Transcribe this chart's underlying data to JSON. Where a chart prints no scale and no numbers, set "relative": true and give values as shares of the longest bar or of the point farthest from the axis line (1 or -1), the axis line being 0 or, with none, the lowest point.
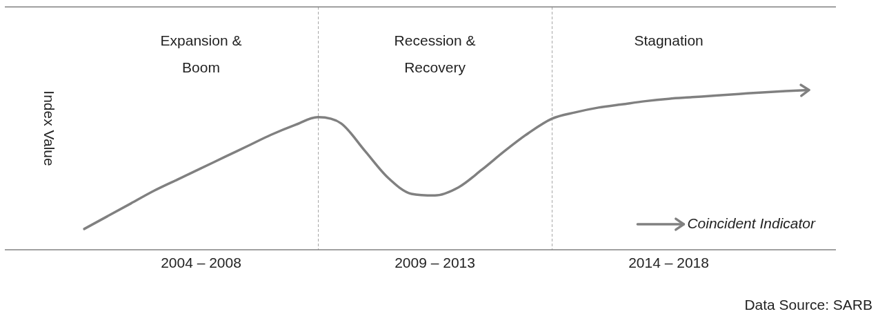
{
  "chart_data": {
    "type": "line",
    "relative": true,
    "ylabel": "Index Value",
    "categories": [
      null,
      null,
      null,
      null,
      null,
      "2004 – 2008",
      null,
      null,
      null,
      null,
      null,
      null,
      null,
      null,
      null,
      "2009 – 2013",
      null,
      null,
      null,
      null,
      null,
      null,
      null,
      null,
      null,
      "2014 – 2018",
      null,
      null,
      null,
      null,
      null,
      null
    ],
    "series": [
      {
        "name": "Coincident Indicator",
        "color": "#808080",
        "values": [
          0.13,
          0.21,
          0.29,
          0.37,
          0.44,
          0.51,
          0.58,
          0.65,
          0.72,
          0.78,
          0.83,
          0.79,
          0.62,
          0.45,
          0.35,
          0.34,
          0.39,
          0.5,
          0.62,
          0.73,
          0.82,
          0.86,
          0.89,
          0.91,
          0.93,
          0.945,
          0.955,
          0.965,
          0.975,
          0.985,
          0.993,
          1
        ]
      }
    ],
    "annotations": [
      "Expansion &\nBoom",
      "Recession &\nRecovery",
      "Stagnation",
      "Data Source: SARB"
    ],
    "legend": "bottom right",
    "grid": "x",
    "marker": "none",
    "line_style": "solid"
  }
}
